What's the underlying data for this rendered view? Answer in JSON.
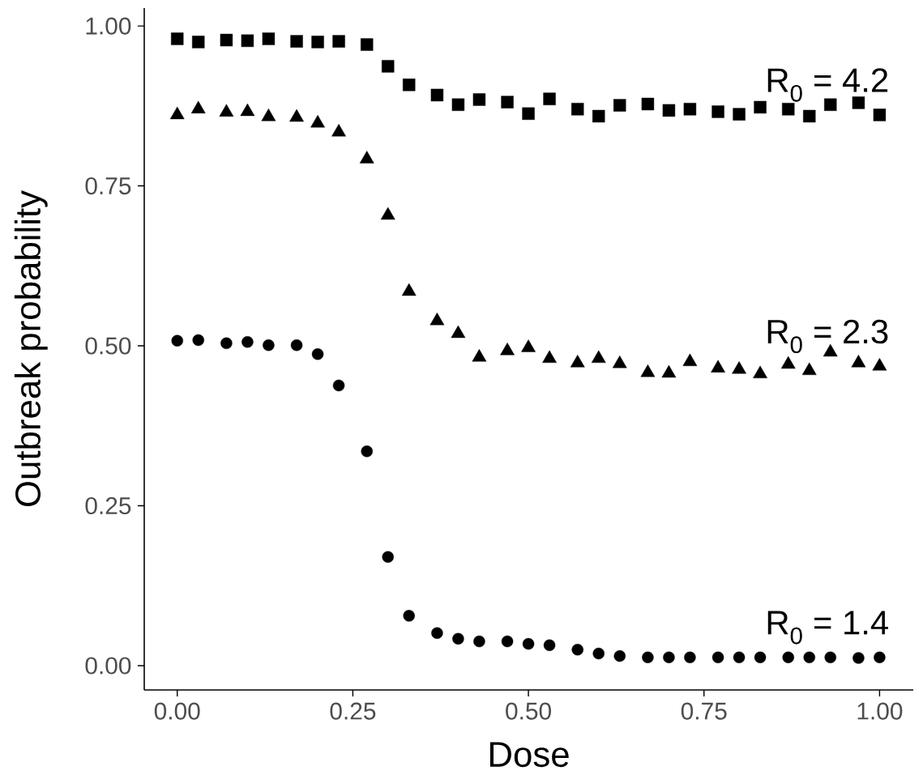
{
  "chart_data": {
    "type": "scatter",
    "xlabel": "Dose",
    "ylabel": "Outbreak probability",
    "x": [
      0,
      0.03,
      0.07,
      0.1,
      0.13,
      0.17,
      0.2,
      0.23,
      0.27,
      0.3,
      0.33,
      0.37,
      0.4,
      0.43,
      0.47,
      0.5,
      0.53,
      0.57,
      0.6,
      0.63,
      0.67,
      0.7,
      0.73,
      0.77,
      0.8,
      0.83,
      0.87,
      0.9,
      0.93,
      0.97,
      1.0
    ],
    "series": [
      {
        "name": "R$_{0}$ = 4.2",
        "color": "#000000",
        "marker": "square",
        "values": [
          0.98,
          0.975,
          0.978,
          0.977,
          0.98,
          0.976,
          0.975,
          0.976,
          0.971,
          0.937,
          0.908,
          0.892,
          0.877,
          0.885,
          0.881,
          0.863,
          0.886,
          0.87,
          0.859,
          0.876,
          0.878,
          0.868,
          0.87,
          0.866,
          0.862,
          0.873,
          0.87,
          0.859,
          0.877,
          0.88,
          0.861
        ]
      },
      {
        "name": "R$_{0}$ = 2.3",
        "color": "#000000",
        "marker": "triangle",
        "values": [
          0.861,
          0.87,
          0.865,
          0.866,
          0.858,
          0.857,
          0.848,
          0.834,
          0.792,
          0.704,
          0.585,
          0.539,
          0.519,
          0.482,
          0.492,
          0.497,
          0.48,
          0.473,
          0.48,
          0.472,
          0.458,
          0.457,
          0.475,
          0.465,
          0.463,
          0.456,
          0.471,
          0.461,
          0.49,
          0.473,
          0.468
        ]
      },
      {
        "name": "R$_{0}$ = 1.4",
        "color": "#000000",
        "marker": "circle",
        "values": [
          0.508,
          0.509,
          0.504,
          0.506,
          0.501,
          0.501,
          0.487,
          0.438,
          0.335,
          0.17,
          0.078,
          0.051,
          0.042,
          0.038,
          0.038,
          0.034,
          0.032,
          0.025,
          0.019,
          0.015,
          0.013,
          0.013,
          0.013,
          0.013,
          0.013,
          0.013,
          0.013,
          0.013,
          0.013,
          0.012,
          0.013
        ]
      }
    ],
    "xlim": [
      -0.047,
      1.048
    ],
    "ylim": [
      -0.038,
      1.028
    ],
    "xticks": [
      {
        "value": 0,
        "label": "0.00"
      },
      {
        "value": 0.25,
        "label": "0.25"
      },
      {
        "value": 0.5,
        "label": "0.50"
      },
      {
        "value": 0.75,
        "label": "0.75"
      },
      {
        "value": 1.0,
        "label": "1.00"
      }
    ],
    "yticks": [
      {
        "value": 0,
        "label": "0.00"
      },
      {
        "value": 0.25,
        "label": "0.25"
      },
      {
        "value": 0.5,
        "label": "0.50"
      },
      {
        "value": 0.75,
        "label": "0.75"
      },
      {
        "value": 1.0,
        "label": "1.00"
      }
    ]
  }
}
